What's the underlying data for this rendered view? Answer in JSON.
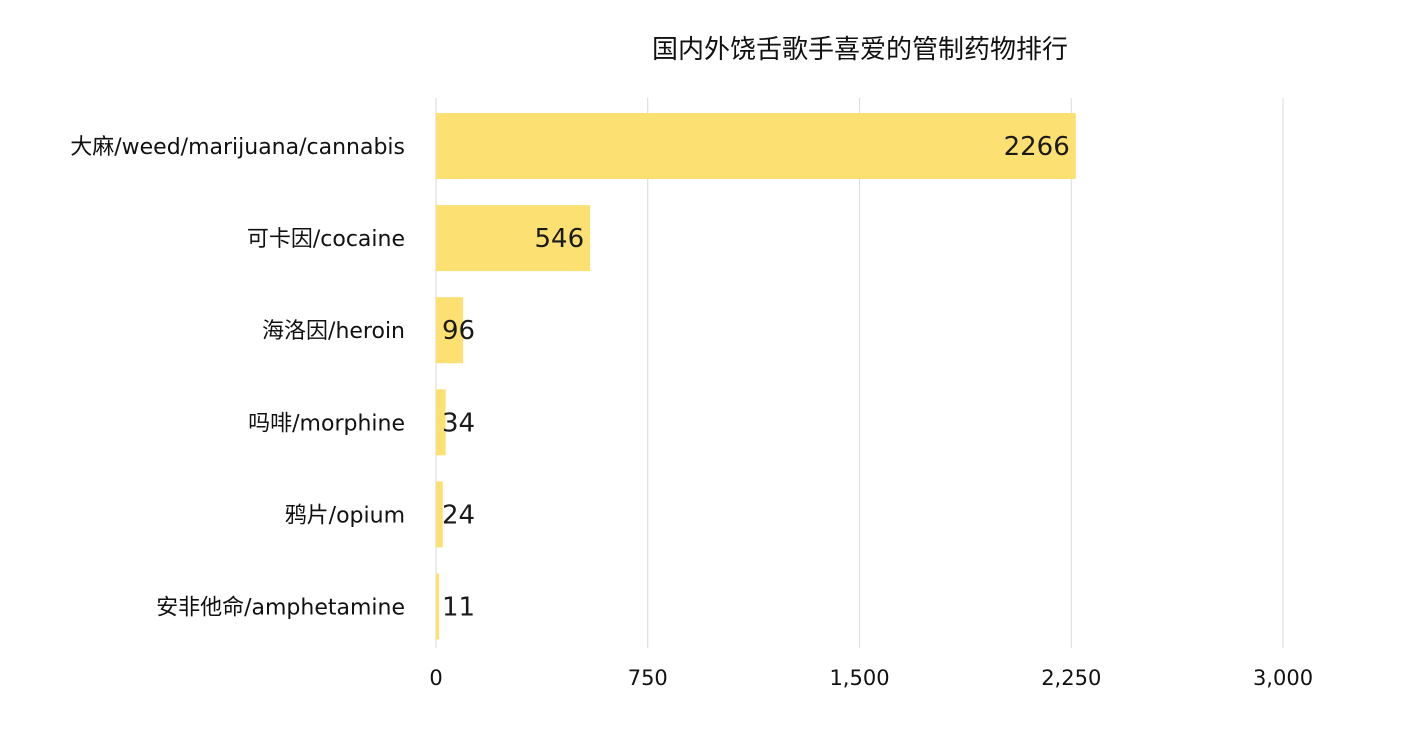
{
  "chart_data": {
    "type": "bar",
    "orientation": "horizontal",
    "title": "国内外饶舌歌手喜爱的管制药物排行",
    "xlabel": "",
    "ylabel": "",
    "categories": [
      "大麻/weed/marijuana/cannabis",
      "可卡因/cocaine",
      "海洛因/heroin",
      "吗啡/morphine",
      "鸦片/opium",
      "安非他命/amphetamine"
    ],
    "values": [
      2266,
      546,
      96,
      34,
      24,
      11
    ],
    "value_labels": [
      "2266",
      "546",
      "96",
      "34",
      "24",
      "11"
    ],
    "xlim": [
      0,
      3000
    ],
    "x_ticks": [
      0,
      750,
      1500,
      2250,
      3000
    ],
    "x_tick_labels": [
      "0",
      "750",
      "1,500",
      "2,250",
      "3,000"
    ],
    "grid": "vertical",
    "legend": "none",
    "bar_color": "#FDE072",
    "grid_color": "#D9D9D9",
    "text_color": "#111111"
  }
}
